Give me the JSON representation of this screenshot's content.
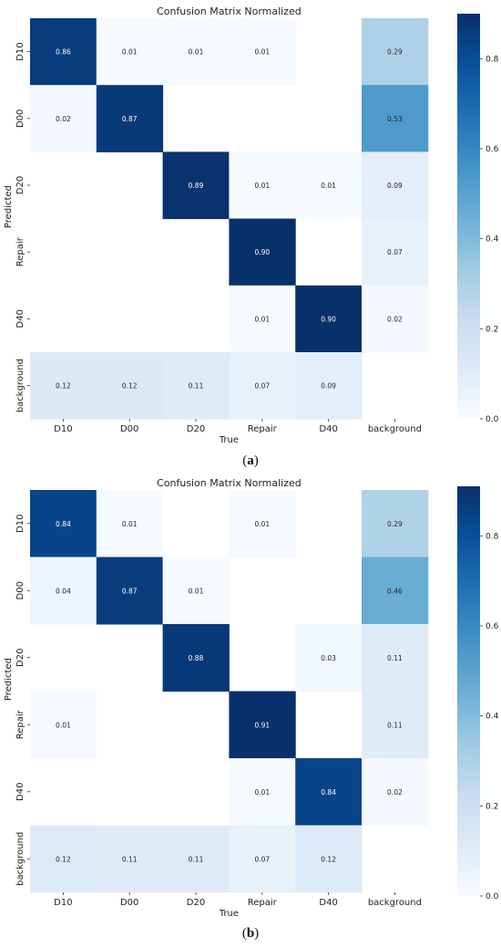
{
  "figure": {
    "captions": [
      "(a)",
      "(b)"
    ],
    "caption_letters": [
      "a",
      "b"
    ]
  },
  "chart_data": [
    {
      "type": "heatmap",
      "title": "Confusion Matrix Normalized",
      "xlabel": "True",
      "ylabel": "Predicted",
      "x_categories": [
        "D10",
        "D00",
        "D20",
        "Repair",
        "D40",
        "background"
      ],
      "y_categories": [
        "D10",
        "D00",
        "D20",
        "Repair",
        "D40",
        "background"
      ],
      "values": [
        [
          0.86,
          0.01,
          0.01,
          0.01,
          null,
          0.29
        ],
        [
          0.02,
          0.87,
          null,
          null,
          null,
          0.53
        ],
        [
          null,
          null,
          0.89,
          0.01,
          0.01,
          0.09
        ],
        [
          null,
          null,
          null,
          0.9,
          null,
          0.07
        ],
        [
          null,
          null,
          null,
          0.01,
          0.9,
          0.02
        ],
        [
          0.12,
          0.12,
          0.11,
          0.07,
          0.09,
          null
        ]
      ],
      "value_labels": [
        [
          "0.86",
          "0.01",
          "0.01",
          "0.01",
          "",
          "0.29"
        ],
        [
          "0.02",
          "0.87",
          "",
          "",
          "",
          "0.53"
        ],
        [
          "",
          "",
          "0.89",
          "0.01",
          "0.01",
          "0.09"
        ],
        [
          "",
          "",
          "",
          "0.90",
          "",
          "0.07"
        ],
        [
          "",
          "",
          "",
          "0.01",
          "0.90",
          "0.02"
        ],
        [
          "0.12",
          "0.12",
          "0.11",
          "0.07",
          "0.09",
          ""
        ]
      ],
      "colorbar": {
        "range": [
          0,
          0.9
        ],
        "ticks": [
          0.0,
          0.2,
          0.4,
          0.6,
          0.8
        ],
        "tick_labels": [
          "0.0",
          "0.2",
          "0.4",
          "0.6",
          "0.8"
        ],
        "colormap": "Blues"
      }
    },
    {
      "type": "heatmap",
      "title": "Confusion Matrix Normalized",
      "xlabel": "True",
      "ylabel": "Predicted",
      "x_categories": [
        "D10",
        "D00",
        "D20",
        "Repair",
        "D40",
        "background"
      ],
      "y_categories": [
        "D10",
        "D00",
        "D20",
        "Repair",
        "D40",
        "background"
      ],
      "values": [
        [
          0.84,
          0.01,
          null,
          0.01,
          null,
          0.29
        ],
        [
          0.04,
          0.87,
          0.01,
          null,
          null,
          0.46
        ],
        [
          null,
          null,
          0.88,
          null,
          0.03,
          0.11
        ],
        [
          0.01,
          null,
          null,
          0.91,
          null,
          0.11
        ],
        [
          null,
          null,
          null,
          0.01,
          0.84,
          0.02
        ],
        [
          0.12,
          0.11,
          0.11,
          0.07,
          0.12,
          null
        ]
      ],
      "value_labels": [
        [
          "0.84",
          "0.01",
          "",
          "0.01",
          "",
          "0.29"
        ],
        [
          "0.04",
          "0.87",
          "0.01",
          "",
          "",
          "0.46"
        ],
        [
          "",
          "",
          "0.88",
          "",
          "0.03",
          "0.11"
        ],
        [
          "0.01",
          "",
          "",
          "0.91",
          "",
          "0.11"
        ],
        [
          "",
          "",
          "",
          "0.01",
          "0.84",
          "0.02"
        ],
        [
          "0.12",
          "0.11",
          "0.11",
          "0.07",
          "0.12",
          ""
        ]
      ],
      "colorbar": {
        "range": [
          0,
          0.91
        ],
        "ticks": [
          0.0,
          0.2,
          0.4,
          0.6,
          0.8
        ],
        "tick_labels": [
          "0.0",
          "0.2",
          "0.4",
          "0.6",
          "0.8"
        ],
        "colormap": "Blues"
      }
    }
  ]
}
